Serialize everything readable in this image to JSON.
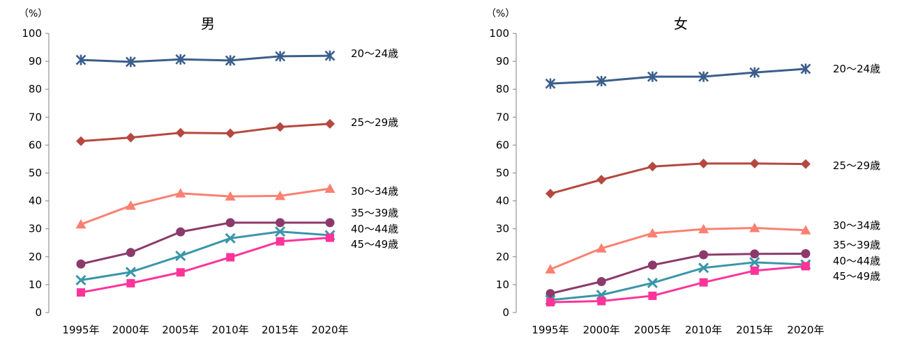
{
  "chart_data": [
    {
      "type": "line",
      "title": "男",
      "unit": "（%）",
      "ylim": [
        0,
        100
      ],
      "yticks": [
        "0",
        "10",
        "20",
        "30",
        "40",
        "50",
        "60",
        "70",
        "80",
        "90",
        "100"
      ],
      "categories": [
        "1995年",
        "2000年",
        "2005年",
        "2010年",
        "2015年",
        "2020年"
      ],
      "grid": false,
      "series": [
        {
          "name": "20～24歳",
          "color": "#3B5E8C",
          "marker": "asterisk",
          "values": [
            90.5,
            89.8,
            90.7,
            90.3,
            91.8,
            92.0
          ]
        },
        {
          "name": "25～29歳",
          "color": "#B5483F",
          "marker": "diamond",
          "values": [
            61.4,
            62.7,
            64.4,
            64.2,
            66.5,
            67.6
          ]
        },
        {
          "name": "30～34歳",
          "color": "#FA8072",
          "marker": "triangle",
          "values": [
            31.6,
            38.3,
            42.7,
            41.6,
            41.8,
            44.4
          ]
        },
        {
          "name": "35～39歳",
          "color": "#8B3A6B",
          "marker": "circle",
          "values": [
            17.4,
            21.5,
            28.9,
            32.2,
            32.2,
            32.2
          ]
        },
        {
          "name": "40～44歳",
          "color": "#3A96A8",
          "marker": "x",
          "values": [
            11.6,
            14.5,
            20.3,
            26.6,
            29.0,
            27.7
          ]
        },
        {
          "name": "45～49歳",
          "color": "#FF3399",
          "marker": "square",
          "values": [
            7.2,
            10.5,
            14.4,
            19.8,
            25.5,
            26.8
          ]
        }
      ]
    },
    {
      "type": "line",
      "title": "女",
      "unit": "（%）",
      "ylim": [
        0,
        100
      ],
      "yticks": [
        "0",
        "10",
        "20",
        "30",
        "40",
        "50",
        "60",
        "70",
        "80",
        "90",
        "100"
      ],
      "categories": [
        "1995年",
        "2000年",
        "2005年",
        "2010年",
        "2015年",
        "2020年"
      ],
      "grid": false,
      "series": [
        {
          "name": "20～24歳",
          "color": "#3B5E8C",
          "marker": "asterisk",
          "values": [
            82.0,
            82.9,
            84.5,
            84.5,
            86.0,
            87.3
          ]
        },
        {
          "name": "25～29歳",
          "color": "#B5483F",
          "marker": "diamond",
          "values": [
            42.6,
            47.6,
            52.3,
            53.4,
            53.4,
            53.2
          ]
        },
        {
          "name": "30～34歳",
          "color": "#FA8072",
          "marker": "triangle",
          "values": [
            15.5,
            23.0,
            28.4,
            29.9,
            30.3,
            29.5
          ]
        },
        {
          "name": "35～39歳",
          "color": "#8B3A6B",
          "marker": "circle",
          "values": [
            6.8,
            11.1,
            17.0,
            20.7,
            21.0,
            21.1
          ]
        },
        {
          "name": "40～44歳",
          "color": "#3A96A8",
          "marker": "x",
          "values": [
            4.5,
            6.3,
            10.6,
            16.0,
            18.0,
            17.2
          ]
        },
        {
          "name": "45～49歳",
          "color": "#FF3399",
          "marker": "square",
          "values": [
            3.7,
            4.1,
            6.0,
            10.8,
            15.0,
            16.6
          ]
        }
      ]
    }
  ]
}
